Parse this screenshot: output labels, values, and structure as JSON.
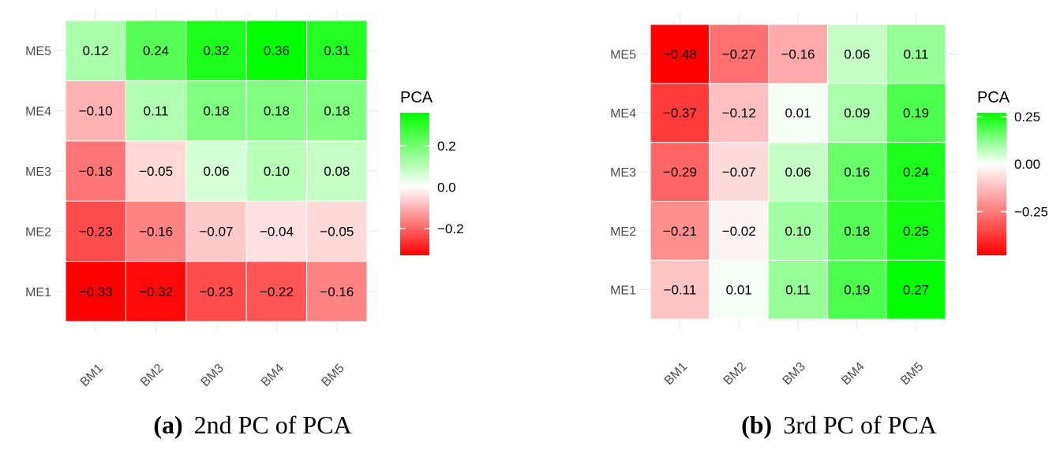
{
  "chart_data": [
    {
      "type": "heatmap",
      "caption_letter": "(a)",
      "caption_text": "2nd PC of PCA",
      "legend_title": "PCA",
      "legend_ticks": [
        0.2,
        0.0,
        -0.2
      ],
      "legend_tick_labels": [
        "0.2",
        "0.0",
        "−0.2"
      ],
      "color_range": [
        -0.33,
        0.36
      ],
      "colors": {
        "low": "#ff0000",
        "mid": "#ffffff",
        "high": "#00ff00"
      },
      "x_categories": [
        "BM1",
        "BM2",
        "BM3",
        "BM4",
        "BM5"
      ],
      "y_categories": [
        "ME1",
        "ME2",
        "ME3",
        "ME4",
        "ME5"
      ],
      "values": [
        [
          -0.33,
          -0.32,
          -0.23,
          -0.22,
          -0.16
        ],
        [
          -0.23,
          -0.16,
          -0.07,
          -0.04,
          -0.05
        ],
        [
          -0.18,
          -0.05,
          0.06,
          0.1,
          0.08
        ],
        [
          -0.1,
          0.11,
          0.18,
          0.18,
          0.18
        ],
        [
          0.12,
          0.24,
          0.32,
          0.36,
          0.31
        ]
      ],
      "labels": [
        [
          "−0.33",
          "−0.32",
          "−0.23",
          "−0.22",
          "−0.16"
        ],
        [
          "−0.23",
          "−0.16",
          "−0.07",
          "−0.04",
          "−0.05"
        ],
        [
          "−0.18",
          "−0.05",
          "0.06",
          "0.10",
          "0.08"
        ],
        [
          "−0.10",
          "0.11",
          "0.18",
          "0.18",
          "0.18"
        ],
        [
          "0.12",
          "0.24",
          "0.32",
          "0.36",
          "0.31"
        ]
      ]
    },
    {
      "type": "heatmap",
      "caption_letter": "(b)",
      "caption_text": "3rd PC of PCA",
      "legend_title": "PCA",
      "legend_ticks": [
        0.25,
        0.0,
        -0.25
      ],
      "legend_tick_labels": [
        "0.25",
        "0.00",
        "−0.25"
      ],
      "color_range": [
        -0.48,
        0.27
      ],
      "colors": {
        "low": "#ff0000",
        "mid": "#ffffff",
        "high": "#00ff00"
      },
      "x_categories": [
        "BM1",
        "BM2",
        "BM3",
        "BM4",
        "BM5"
      ],
      "y_categories": [
        "ME1",
        "ME2",
        "ME3",
        "ME4",
        "ME5"
      ],
      "values": [
        [
          -0.11,
          0.01,
          0.11,
          0.19,
          0.27
        ],
        [
          -0.21,
          -0.02,
          0.1,
          0.18,
          0.25
        ],
        [
          -0.29,
          -0.07,
          0.06,
          0.16,
          0.24
        ],
        [
          -0.37,
          -0.12,
          0.01,
          0.09,
          0.19
        ],
        [
          -0.48,
          -0.27,
          -0.16,
          0.06,
          0.11
        ]
      ],
      "labels": [
        [
          "−0.11",
          "0.01",
          "0.11",
          "0.19",
          "0.27"
        ],
        [
          "−0.21",
          "−0.02",
          "0.10",
          "0.18",
          "0.25"
        ],
        [
          "−0.29",
          "−0.07",
          "0.06",
          "0.16",
          "0.24"
        ],
        [
          "−0.37",
          "−0.12",
          "0.01",
          "0.09",
          "0.19"
        ],
        [
          "−0.48",
          "−0.27",
          "−0.16",
          "0.06",
          "0.11"
        ]
      ]
    }
  ]
}
